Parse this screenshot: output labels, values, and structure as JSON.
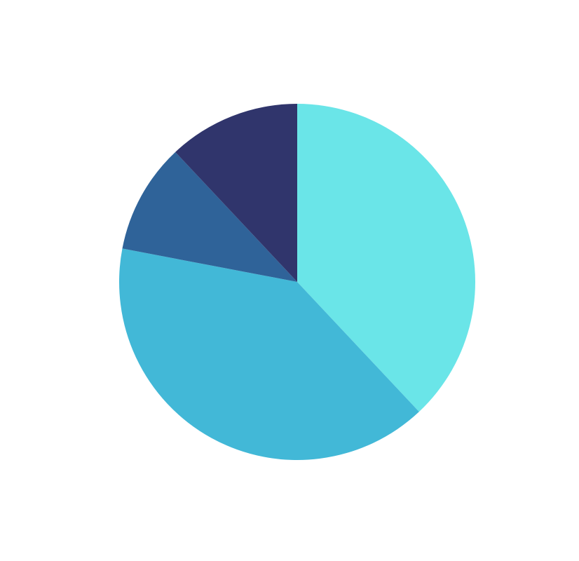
{
  "chart_data": {
    "type": "pie",
    "values": [
      38,
      40,
      10,
      12
    ],
    "colors": [
      "#6ae5e8",
      "#42b8d7",
      "#2f6399",
      "#30356c"
    ],
    "start_angle": 0,
    "direction": "clockwise"
  }
}
